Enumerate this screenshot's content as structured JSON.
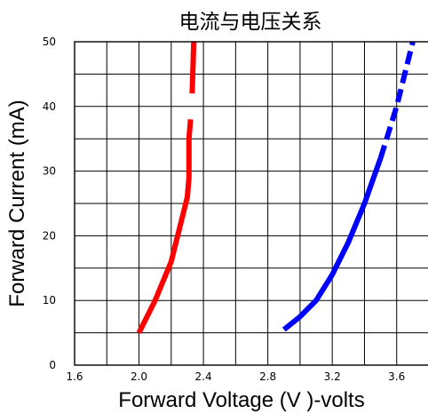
{
  "chart_data": {
    "type": "line",
    "title": "电流与电压关系",
    "xlabel": "Forward Voltage (V )-volts",
    "ylabel": "Forward Current  (mA)",
    "xlim": [
      1.6,
      3.8
    ],
    "ylim": [
      0,
      50
    ],
    "x_ticks": [
      "1.6",
      "2.0",
      "2.4",
      "2.8",
      "3.2",
      "3.6"
    ],
    "y_ticks": [
      "0",
      "10",
      "20",
      "30",
      "40",
      "50"
    ],
    "grid": true,
    "series": [
      {
        "color": "#ff0000",
        "segments": [
          {
            "style": "solid",
            "x": [
              2.0,
              2.1,
              2.2,
              2.25,
              2.3,
              2.31,
              2.31,
              2.32
            ],
            "y": [
              5,
              10,
              16,
              21,
              26,
              29,
              35,
              38
            ]
          },
          {
            "style": "solid",
            "x": [
              2.33,
              2.34
            ],
            "y": [
              42,
              50
            ]
          }
        ]
      },
      {
        "color": "#0000ff",
        "segments": [
          {
            "style": "solid",
            "x": [
              2.9,
              3.0,
              3.1,
              3.2,
              3.3,
              3.4,
              3.45,
              3.5
            ],
            "y": [
              5.5,
              7.5,
              10,
              14,
              19,
              25,
              28.5,
              32
            ]
          },
          {
            "style": "dashed",
            "x": [
              3.5,
              3.55,
              3.6,
              3.65,
              3.7
            ],
            "y": [
              32,
              36,
              40,
              45,
              50
            ]
          }
        ]
      }
    ]
  }
}
